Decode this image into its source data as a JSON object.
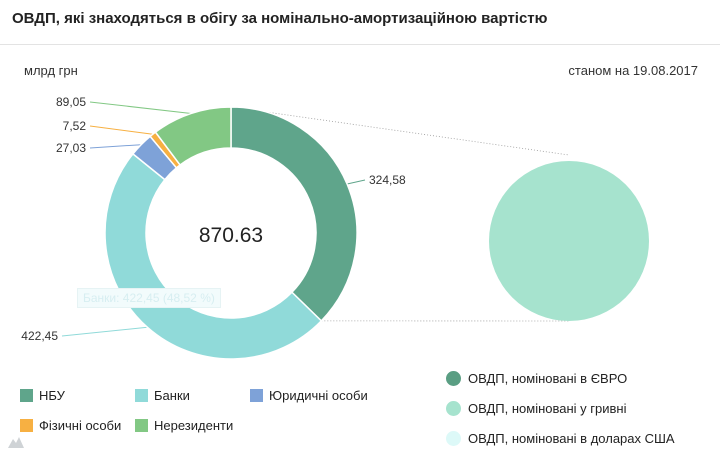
{
  "header": {
    "title": "ОВДП, які знаходяться в обігу за номінально-амортизаційною вартістю",
    "unit": "млрд грн",
    "date": "станом на 19.08.2017"
  },
  "chart_data": [
    {
      "type": "pie",
      "variant": "donut",
      "total_label": "870.63",
      "slices": [
        {
          "name": "НБУ",
          "value": 324.58,
          "label": "324,58",
          "color": "#5fa58b"
        },
        {
          "name": "Банки",
          "value": 422.45,
          "label": "422,45",
          "color": "#90dad9"
        },
        {
          "name": "Юридичні особи",
          "value": 27.03,
          "label": "27,03",
          "color": "#7ea2d8"
        },
        {
          "name": "Фізичні особи",
          "value": 7.52,
          "label": "7,52",
          "color": "#f7b042"
        },
        {
          "name": "Нерезиденти",
          "value": 89.05,
          "label": "89,05",
          "color": "#82c884"
        }
      ],
      "legend_position": "bottom-left"
    },
    {
      "type": "pie",
      "detail_of": "НБУ",
      "slices": [
        {
          "name": "ОВДП, номіновані в ЄВРО",
          "color": "#5a9e83"
        },
        {
          "name": "ОВДП, номіновані у гривні",
          "color": "#a6e3ce"
        },
        {
          "name": "ОВДП, номіновані в доларах США",
          "color": "#ddf9f8"
        }
      ],
      "legend_position": "bottom-right"
    }
  ],
  "tooltip": {
    "text": "Банки: 422,45 (48,52 %)"
  }
}
